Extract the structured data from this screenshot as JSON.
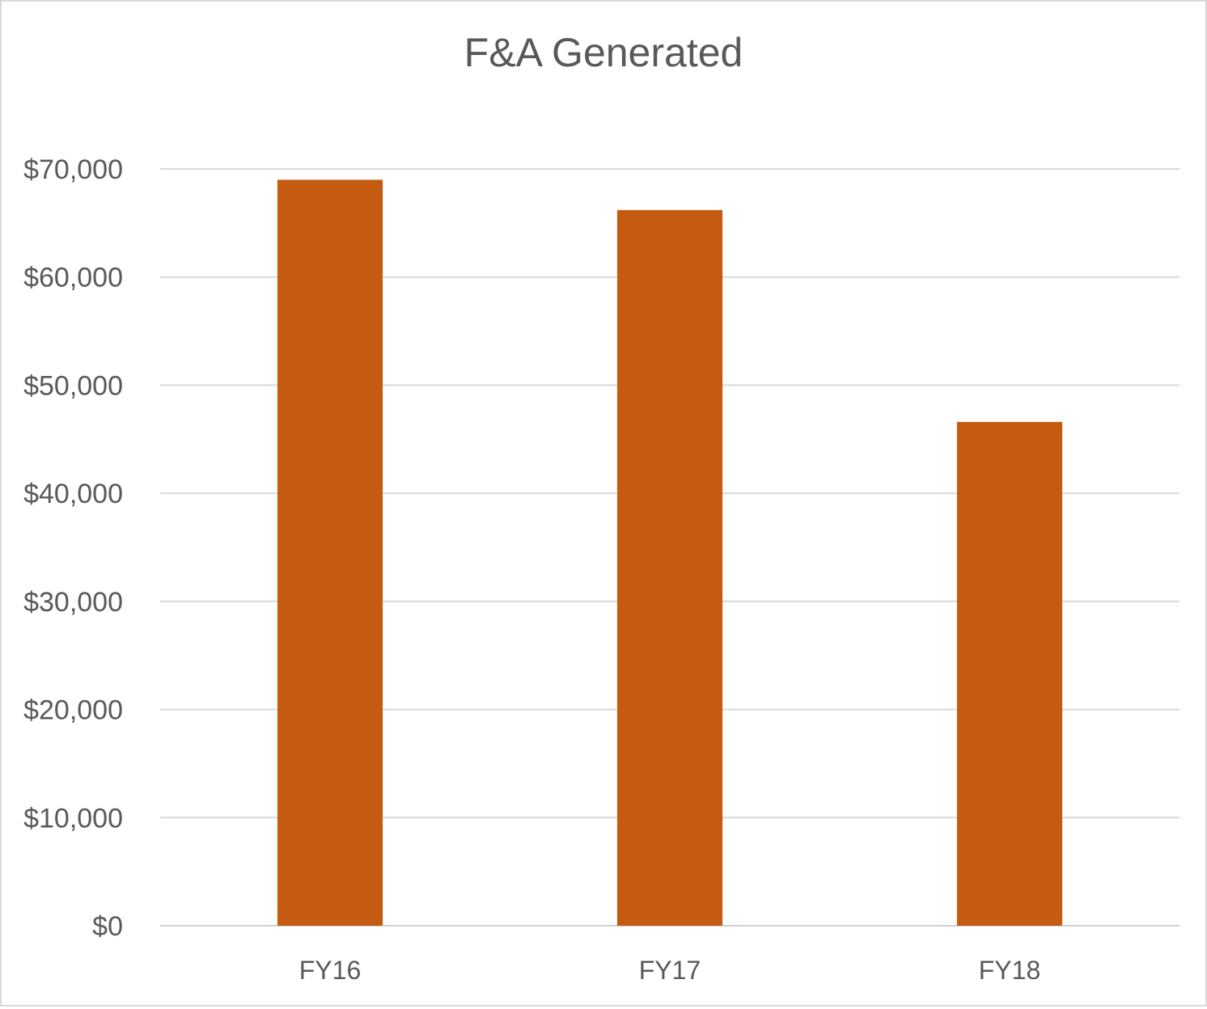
{
  "chart_data": {
    "type": "bar",
    "title": "F&A Generated",
    "xlabel": "",
    "ylabel": "",
    "categories": [
      "FY16",
      "FY17",
      "FY18"
    ],
    "values": [
      69000,
      66200,
      46600
    ],
    "ylim": [
      0,
      70000
    ],
    "y_ticks": [
      0,
      10000,
      20000,
      30000,
      40000,
      50000,
      60000,
      70000
    ],
    "y_tick_labels": [
      "$0",
      "$10,000",
      "$20,000",
      "$30,000",
      "$40,000",
      "$50,000",
      "$60,000",
      "$70,000"
    ],
    "grid": true,
    "legend": "none",
    "bar_color": "#C55A11"
  }
}
